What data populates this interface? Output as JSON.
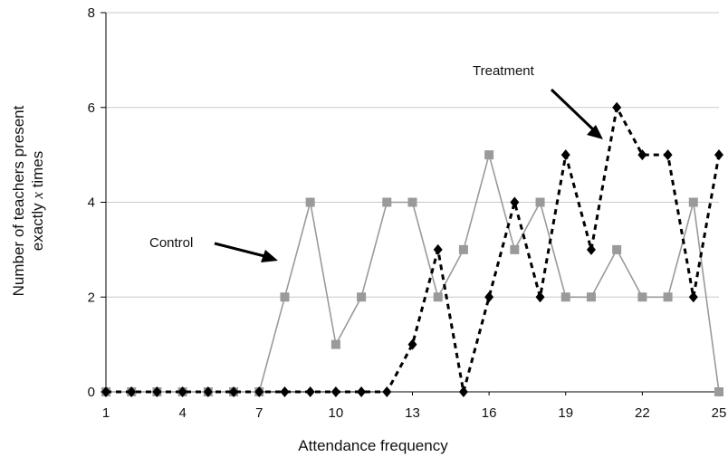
{
  "chart_data": {
    "type": "line",
    "xlabel": "Attendance frequency",
    "ylabel_line1": "Number of teachers present",
    "ylabel_line2_prefix": "exactly ",
    "ylabel_line2_var": "x",
    "ylabel_line2_suffix": " times",
    "xlim": [
      1,
      25
    ],
    "ylim": [
      0,
      8
    ],
    "x_ticks": [
      1,
      4,
      7,
      10,
      13,
      16,
      19,
      22,
      25
    ],
    "y_ticks": [
      0,
      2,
      4,
      6,
      8
    ],
    "grid": "horizontal",
    "x": [
      1,
      2,
      3,
      4,
      5,
      6,
      7,
      8,
      9,
      10,
      11,
      12,
      13,
      14,
      15,
      16,
      17,
      18,
      19,
      20,
      21,
      22,
      23,
      24,
      25
    ],
    "series": [
      {
        "name": "Control",
        "color": "#9a9a9a",
        "marker": "square",
        "line_style": "solid",
        "values": [
          0,
          0,
          0,
          0,
          0,
          0,
          0,
          2,
          4,
          1,
          2,
          4,
          4,
          2,
          3,
          5,
          3,
          4,
          2,
          2,
          3,
          2,
          2,
          4,
          0
        ]
      },
      {
        "name": "Treatment",
        "color": "#000000",
        "marker": "diamond",
        "line_style": "dashed",
        "values": [
          0,
          0,
          0,
          0,
          0,
          0,
          0,
          0,
          0,
          0,
          0,
          0,
          1,
          3,
          0,
          2,
          4,
          2,
          5,
          3,
          6,
          5,
          5,
          2,
          5
        ]
      }
    ],
    "annotations": [
      {
        "text": "Control",
        "series": "Control"
      },
      {
        "text": "Treatment",
        "series": "Treatment"
      }
    ]
  }
}
